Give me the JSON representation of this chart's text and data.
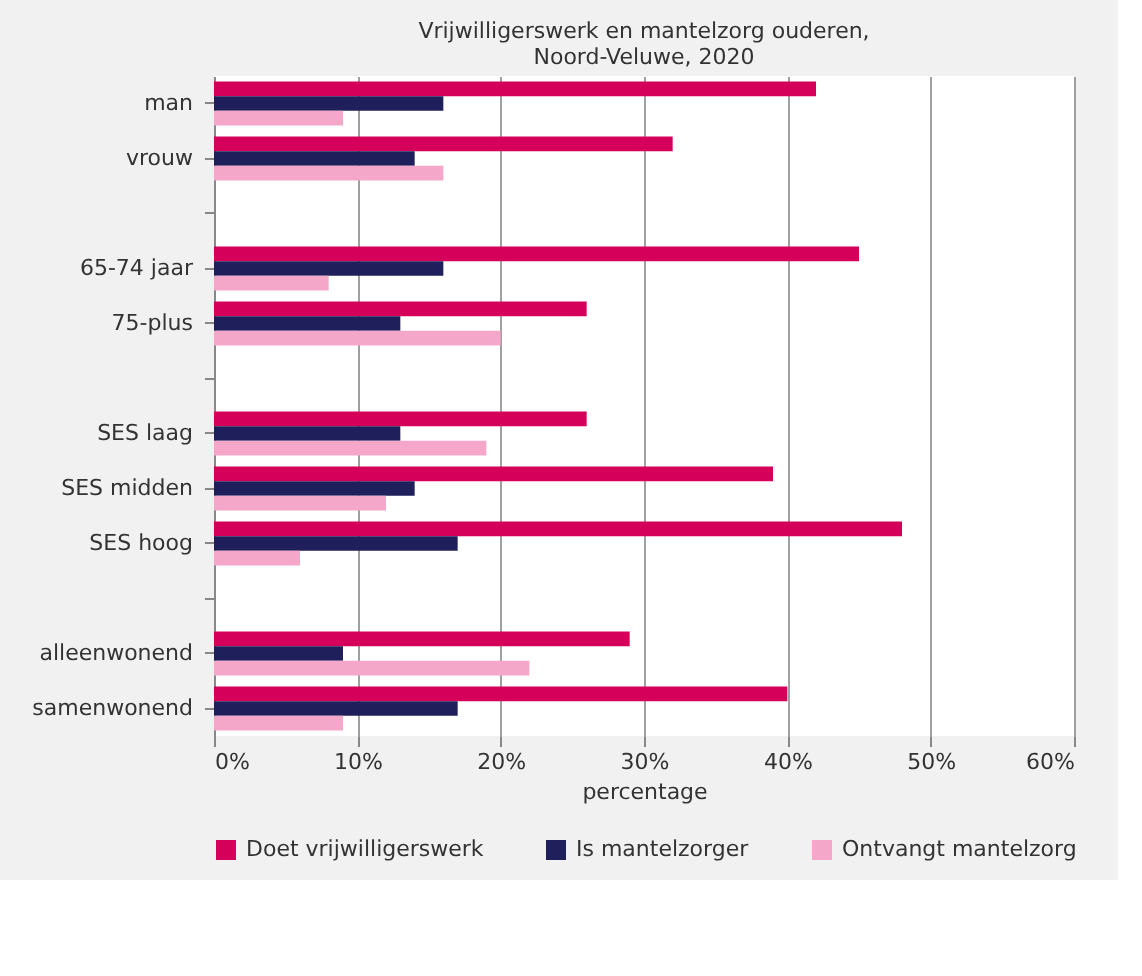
{
  "chart_data": {
    "type": "bar",
    "orientation": "horizontal",
    "title": "Vrijwilligerswerk en mantelzorg ouderen,",
    "subtitle": "Noord-Veluwe, 2020",
    "xlabel": "percentage",
    "categories": [
      "man",
      "vrouw",
      null,
      "65-74 jaar",
      "75-plus",
      null,
      "SES laag",
      "SES midden",
      "SES hoog",
      null,
      "alleenwonend",
      "samenwonend"
    ],
    "series": [
      {
        "name": "Doet vrijwilligerswerk",
        "color": "#d4005a",
        "values": [
          42,
          32,
          null,
          45,
          26,
          null,
          26,
          39,
          48,
          null,
          29,
          40
        ]
      },
      {
        "name": "Is mantelzorger",
        "color": "#1f1f5c",
        "values": [
          16,
          14,
          null,
          16,
          13,
          null,
          13,
          14,
          17,
          null,
          9,
          17
        ]
      },
      {
        "name": "Ontvangt mantelzorg",
        "color": "#f4a7c8",
        "values": [
          9,
          16,
          null,
          8,
          20,
          null,
          19,
          12,
          6,
          null,
          22,
          9
        ]
      }
    ],
    "xlim": [
      0,
      60
    ],
    "xticks": [
      {
        "value": 0,
        "label": "0%"
      },
      {
        "value": 10,
        "label": "10%"
      },
      {
        "value": 20,
        "label": "20%"
      },
      {
        "value": 30,
        "label": "30%"
      },
      {
        "value": 40,
        "label": "40%"
      },
      {
        "value": 50,
        "label": "50%"
      },
      {
        "value": 60,
        "label": "60%"
      }
    ],
    "grid": "x",
    "legend": "bottom"
  }
}
